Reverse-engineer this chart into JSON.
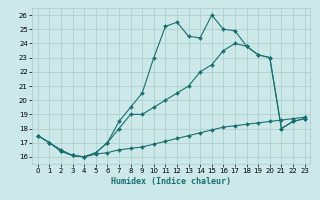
{
  "xlabel": "Humidex (Indice chaleur)",
  "xlim": [
    -0.5,
    23.5
  ],
  "ylim": [
    15.5,
    26.5
  ],
  "xticks": [
    0,
    1,
    2,
    3,
    4,
    5,
    6,
    7,
    8,
    9,
    10,
    11,
    12,
    13,
    14,
    15,
    16,
    17,
    18,
    19,
    20,
    21,
    22,
    23
  ],
  "yticks": [
    16,
    17,
    18,
    19,
    20,
    21,
    22,
    23,
    24,
    25,
    26
  ],
  "bg_color": "#cce8e8",
  "grid_color": "#aacccc",
  "line_color": "#1a7070",
  "line1_x": [
    0,
    1,
    2,
    3,
    4,
    5,
    6,
    7,
    8,
    9,
    10,
    11,
    12,
    13,
    14,
    15,
    16,
    17,
    18,
    19,
    20,
    21,
    22,
    23
  ],
  "line1_y": [
    17.5,
    17.0,
    16.5,
    16.1,
    16.0,
    16.2,
    16.3,
    16.5,
    16.6,
    16.7,
    16.9,
    17.1,
    17.3,
    17.5,
    17.7,
    17.9,
    18.1,
    18.2,
    18.3,
    18.4,
    18.5,
    18.6,
    18.7,
    18.8
  ],
  "line2_x": [
    0,
    1,
    2,
    3,
    4,
    5,
    6,
    7,
    8,
    9,
    10,
    11,
    12,
    13,
    14,
    15,
    16,
    17,
    18,
    19,
    20,
    21,
    22,
    23
  ],
  "line2_y": [
    17.5,
    17.0,
    16.4,
    16.1,
    16.0,
    16.3,
    17.0,
    18.0,
    19.0,
    19.0,
    19.5,
    20.0,
    20.5,
    21.0,
    22.0,
    22.5,
    23.5,
    24.0,
    23.8,
    23.2,
    23.0,
    18.0,
    18.5,
    18.7
  ],
  "line3_x": [
    0,
    1,
    2,
    3,
    4,
    5,
    6,
    7,
    8,
    9,
    10,
    11,
    12,
    13,
    14,
    15,
    16,
    17,
    18,
    19,
    20,
    21,
    22,
    23
  ],
  "line3_y": [
    17.5,
    17.0,
    16.4,
    16.1,
    16.0,
    16.3,
    17.0,
    18.5,
    19.5,
    20.5,
    23.0,
    25.2,
    25.5,
    24.5,
    24.4,
    26.0,
    25.0,
    24.9,
    23.8,
    23.2,
    23.0,
    18.0,
    18.5,
    18.7
  ]
}
